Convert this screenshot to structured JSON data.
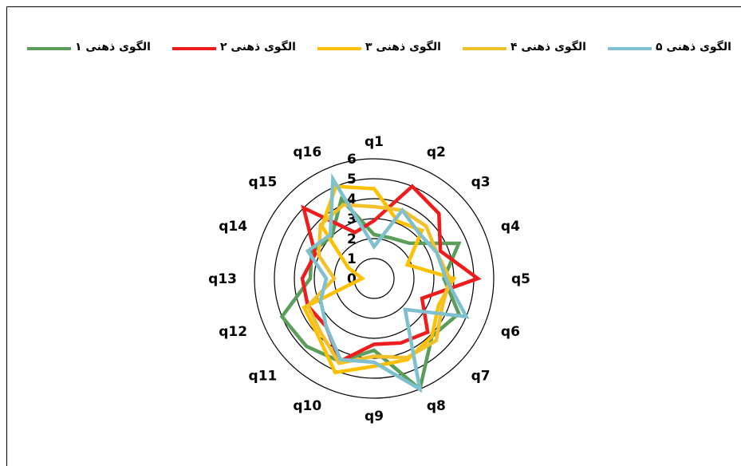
{
  "chart_data": {
    "type": "radar",
    "categories": [
      "q1",
      "q2",
      "q3",
      "q4",
      "q5",
      "q6",
      "q7",
      "q8",
      "q9",
      "q10",
      "q11",
      "q12",
      "q13",
      "q14",
      "q15",
      "q16"
    ],
    "rlim": [
      0,
      6
    ],
    "rticks": [
      "0",
      "1",
      "2",
      "3",
      "4",
      "5",
      "6"
    ],
    "legend_position": "top",
    "series": [
      {
        "name": "الگوی ذهنی ۱",
        "color": "#5b9e5a",
        "values": [
          2.2,
          2.2,
          2.5,
          4.6,
          3.5,
          4.6,
          4.1,
          6.0,
          3.6,
          4.5,
          4.8,
          5.0,
          3.2,
          3.4,
          3.0,
          4.3
        ]
      },
      {
        "name": "الگوی ذهنی ۲",
        "color": "#ee1c1c",
        "values": [
          2.9,
          5.0,
          4.6,
          3.6,
          5.2,
          2.6,
          3.8,
          3.5,
          3.3,
          4.5,
          3.4,
          3.6,
          3.6,
          3.2,
          5.0,
          2.5
        ]
      },
      {
        "name": "الگوی ذهنی ۳",
        "color": "#ffc000",
        "values": [
          4.5,
          3.1,
          3.4,
          1.8,
          4.0,
          3.5,
          4.1,
          4.4,
          4.4,
          5.1,
          4.0,
          3.8,
          0.6,
          1.4,
          3.7,
          5.0
        ]
      },
      {
        "name": "الگوی ذهنی ۴",
        "color": "#f2c12a",
        "values": [
          3.6,
          3.7,
          3.7,
          3.4,
          3.8,
          3.7,
          4.4,
          4.3,
          3.9,
          4.6,
          3.8,
          3.6,
          2.0,
          3.0,
          3.8,
          4.0
        ]
      },
      {
        "name": "الگوی ذهنی ۵",
        "color": "#7fc0ce",
        "values": [
          1.6,
          3.7,
          3.2,
          3.4,
          3.6,
          5.0,
          2.2,
          6.0,
          4.2,
          4.4,
          3.4,
          2.9,
          2.4,
          3.6,
          3.1,
          5.4
        ]
      }
    ]
  }
}
